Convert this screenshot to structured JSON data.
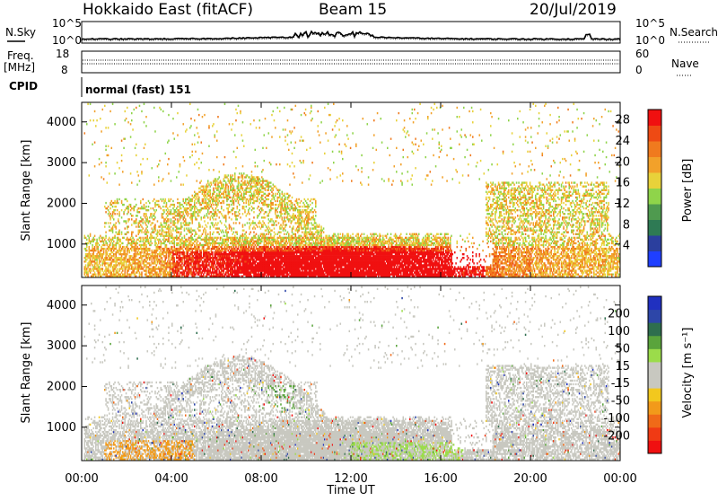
{
  "header": {
    "title": "Hokkaido East (fitACF)",
    "beam": "Beam 15",
    "date": "20/Jul/2019"
  },
  "strip_labels": {
    "nsky": "N.Sky",
    "freq_line1": "Freq.",
    "freq_line2": "[MHz]",
    "cpid": "CPID",
    "nsearch": "N.Search",
    "nave": "Nave",
    "cpid_text": "normal (fast) 151"
  },
  "strip_ticks": {
    "noise_left": [
      "10^5",
      "10^0"
    ],
    "noise_right": [
      "10^5",
      "10^0"
    ],
    "freq_left": [
      "18",
      "8"
    ],
    "nave_right": [
      "60",
      "0"
    ]
  },
  "colors": {
    "power_scale": [
      "#1f3fff",
      "#2b3f9e",
      "#2e7a54",
      "#4f9a4f",
      "#8fd44a",
      "#e8d23a",
      "#f2a12a",
      "#f07a1e",
      "#ee4a14",
      "#f01010"
    ],
    "velocity_scale": [
      "#2030c0",
      "#2d46a8",
      "#2e6e4e",
      "#5aa43c",
      "#9bdc4a",
      "#c8c8c0",
      "#c8c8c0",
      "#f2c81e",
      "#f29a1a",
      "#f06a18",
      "#f03a14",
      "#f01010"
    ]
  },
  "chart_data": [
    {
      "type": "heatmap",
      "title": "",
      "xlabel": "",
      "ylabel": "Slant Range [km]",
      "x_ticks": [
        "00:00",
        "04:00",
        "08:00",
        "12:00",
        "16:00",
        "20:00",
        "00:00"
      ],
      "xlim": [
        0,
        24
      ],
      "y_ticks": [
        "1000",
        "2000",
        "3000",
        "4000"
      ],
      "ylim": [
        180,
        4480
      ],
      "colorbar": {
        "label": "Power [dB]",
        "ticks": [
          "4",
          "8",
          "12",
          "16",
          "20",
          "24",
          "28"
        ],
        "range": [
          0,
          30
        ]
      },
      "echo_regions": [
        {
          "t": [
            0.1,
            24.0
          ],
          "r": [
            180,
            1200
          ],
          "value": "power 16-30 dB, strongest 04:00-18:00"
        },
        {
          "t": [
            4.0,
            10.5
          ],
          "r": [
            1200,
            2500
          ],
          "value": "power 12-24 dB"
        },
        {
          "t": [
            18.0,
            23.5
          ],
          "r": [
            1000,
            2500
          ],
          "value": "power 12-24 dB"
        }
      ]
    },
    {
      "type": "heatmap",
      "title": "",
      "xlabel": "Time UT",
      "ylabel": "Slant Range [km]",
      "x_ticks": [
        "00:00",
        "04:00",
        "08:00",
        "12:00",
        "16:00",
        "20:00",
        "00:00"
      ],
      "xlim": [
        0,
        24
      ],
      "y_ticks": [
        "1000",
        "2000",
        "3000",
        "4000"
      ],
      "ylim": [
        180,
        4480
      ],
      "colorbar": {
        "label": "Velocity [m s⁻¹]",
        "ticks": [
          "200",
          "100",
          "50",
          "15",
          "-15",
          "-50",
          "-100",
          "-200"
        ],
        "range": [
          -250,
          250
        ]
      },
      "echo_regions": [
        {
          "t": [
            0.1,
            24.0
          ],
          "r": [
            180,
            1200
          ],
          "value": "velocity mostly -15 to 15 m/s (ground scatter)"
        },
        {
          "t": [
            1.0,
            5.0
          ],
          "r": [
            180,
            700
          ],
          "value": "velocity -15 to -50 m/s"
        },
        {
          "t": [
            12.0,
            17.0
          ],
          "r": [
            180,
            600
          ],
          "value": "velocity 15 to 100 m/s"
        }
      ]
    }
  ]
}
